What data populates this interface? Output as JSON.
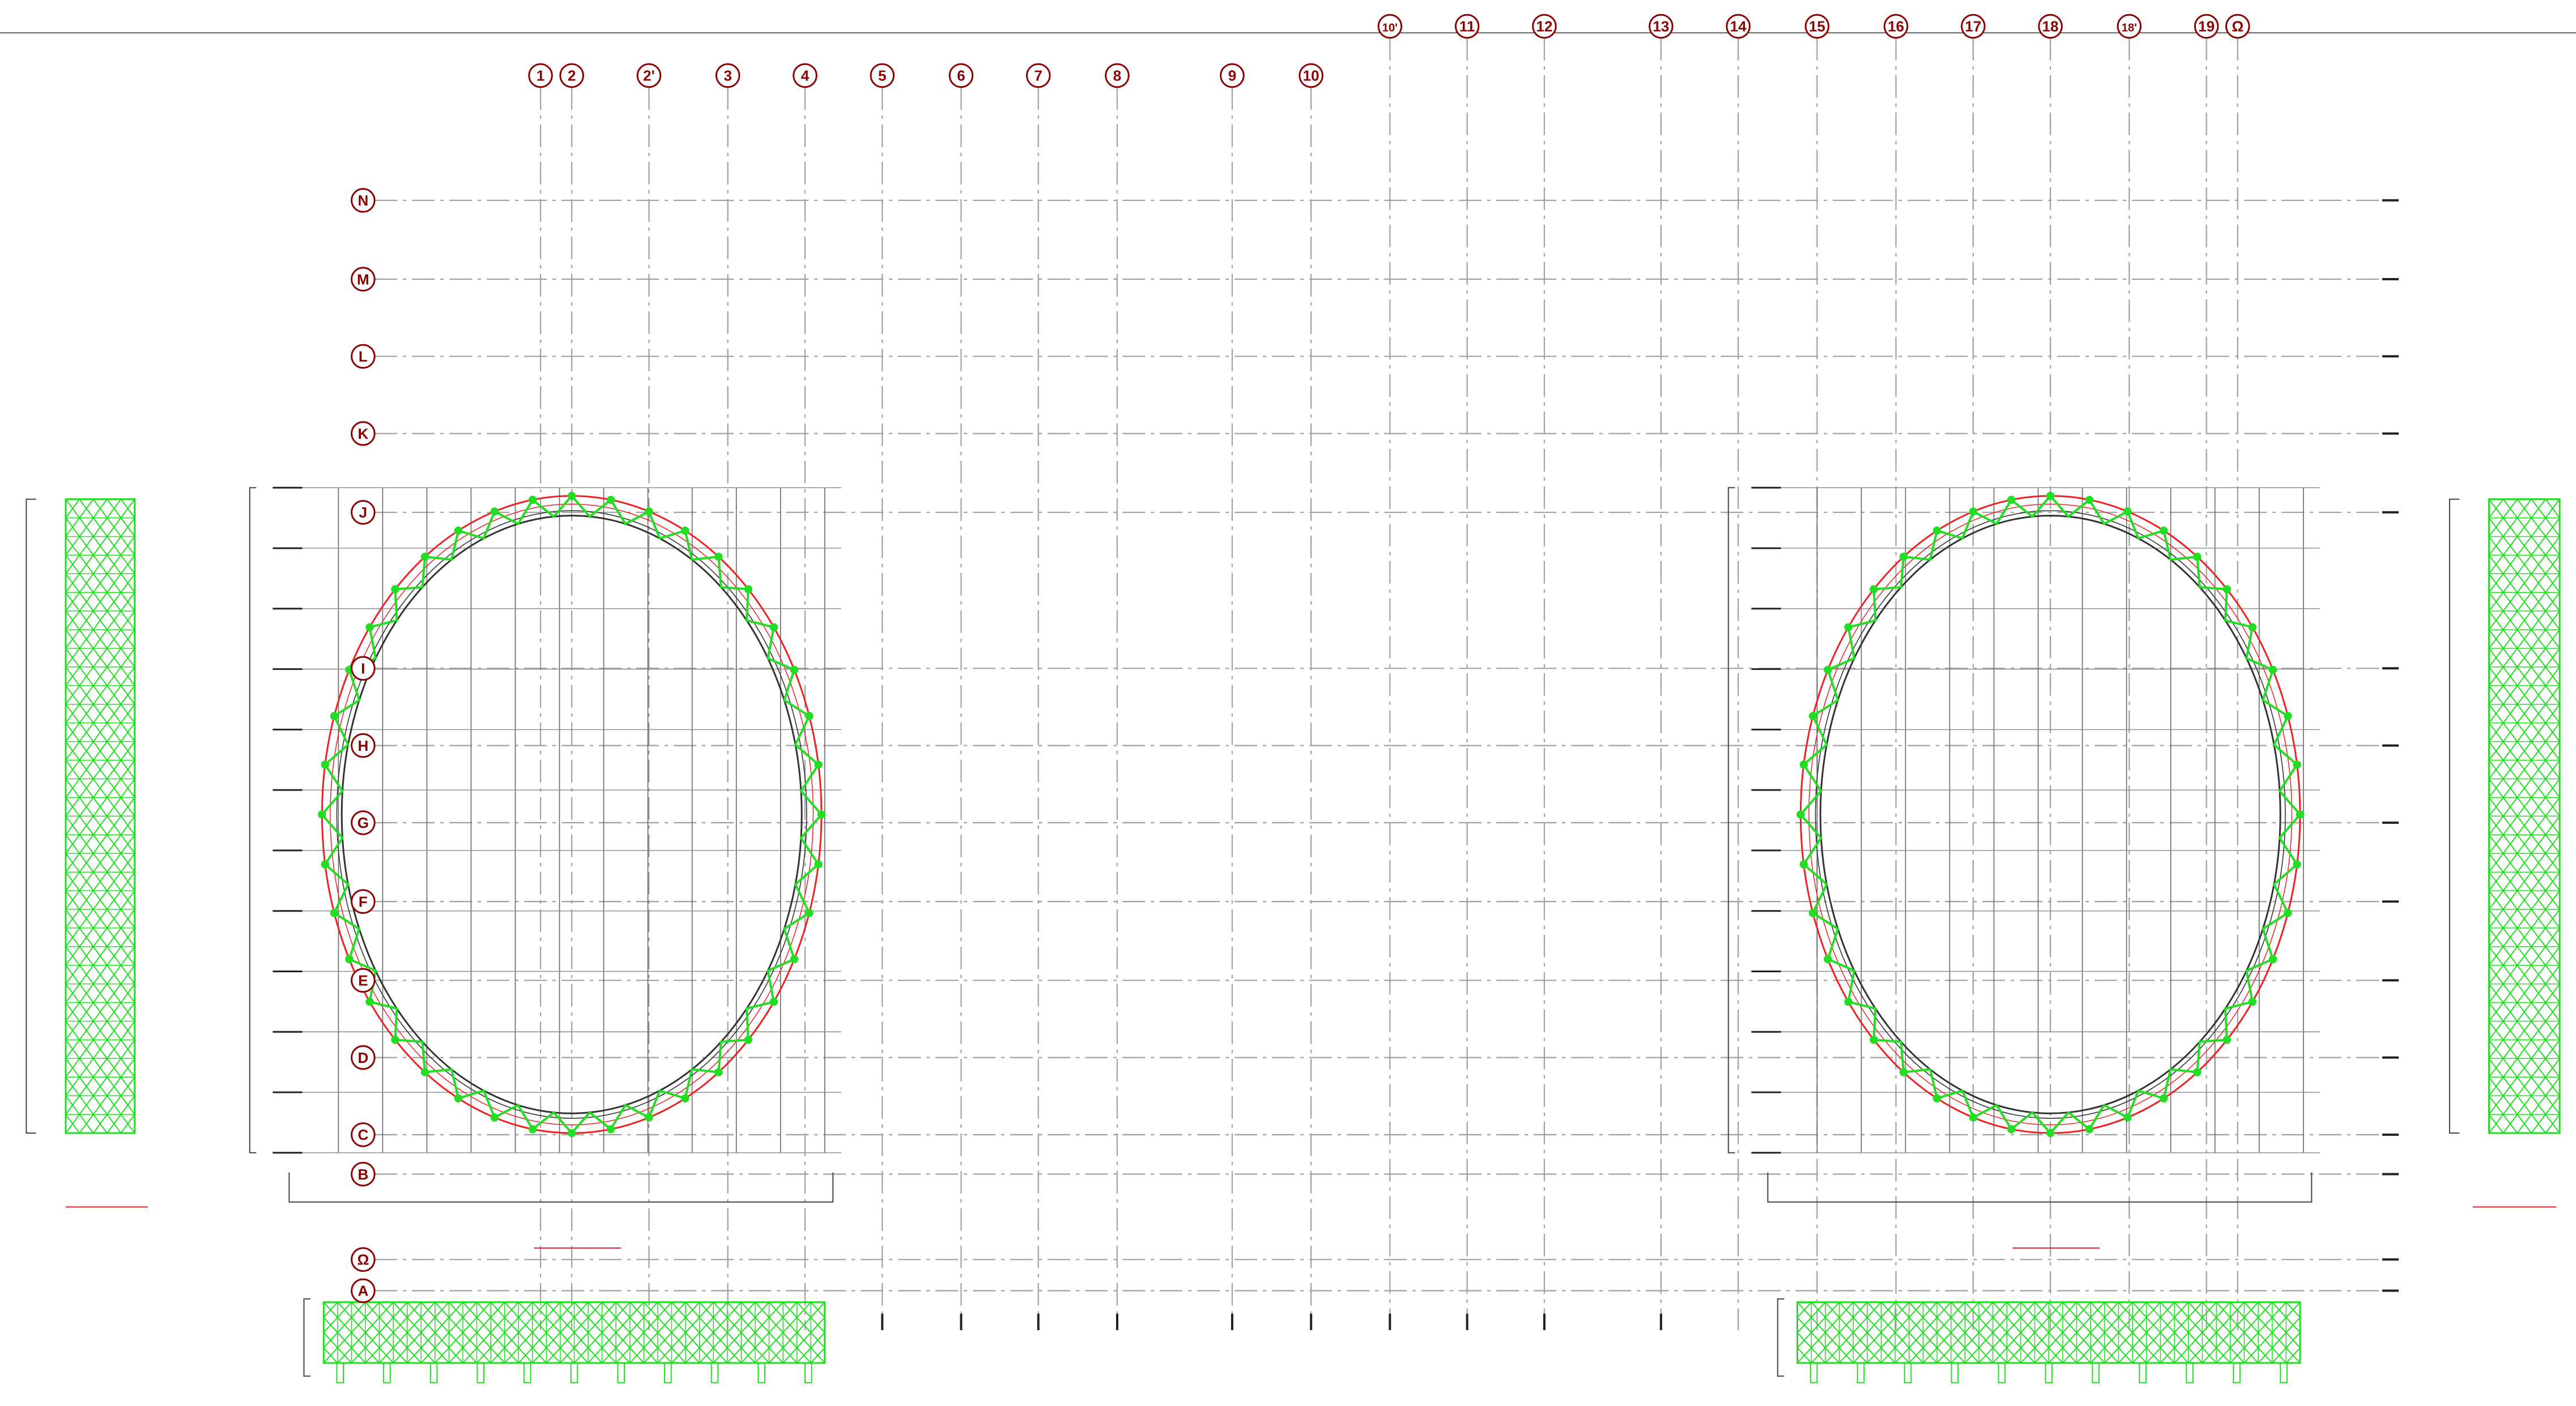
{
  "drawing": {
    "colors": {
      "background": "#ffffff",
      "grid_line": "#a0a0a0",
      "bubble_stroke": "#8b0000",
      "bubble_text": "#8b0000",
      "truss_green": "#22dd22",
      "ring_red": "#ee2222",
      "ring_dark": "#333333",
      "dimension_line": "#444444"
    },
    "column_grid_labels": [
      "1",
      "2",
      "2'",
      "3",
      "4",
      "5",
      "6",
      "7",
      "8",
      "9",
      "10",
      "10'",
      "11",
      "12",
      "13",
      "14",
      "15",
      "16",
      "17",
      "18",
      "18'",
      "19",
      "Ω"
    ],
    "row_grid_labels": [
      "N",
      "M",
      "L",
      "K",
      "J",
      "I",
      "H",
      "G",
      "F",
      "E",
      "D",
      "C",
      "B",
      "Ω",
      "A"
    ],
    "elements": [
      "oval-truss-ring-left",
      "oval-truss-ring-right",
      "elevation-left-vertical",
      "elevation-right-vertical",
      "elevation-left-bottom",
      "elevation-right-bottom"
    ]
  }
}
